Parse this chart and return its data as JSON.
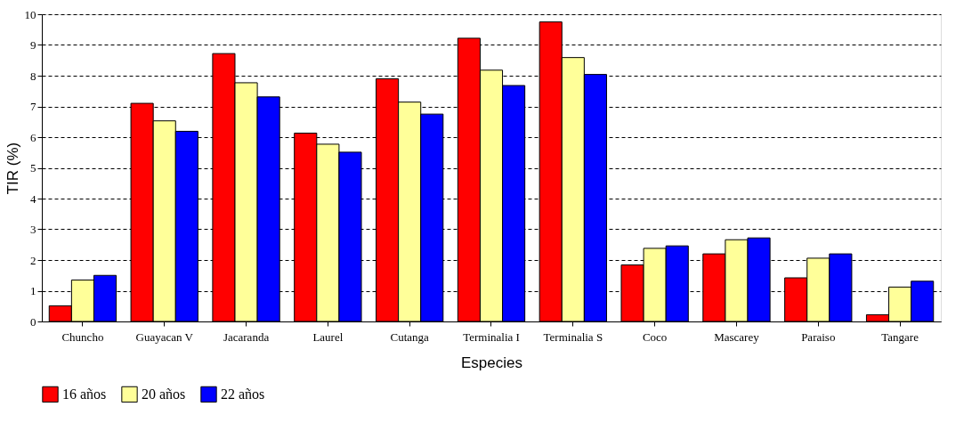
{
  "chart_data": {
    "type": "bar",
    "xlabel": "Especies",
    "ylabel": "TIR (%)",
    "categories": [
      "Chuncho",
      "Guayacan V",
      "Jacaranda",
      "Laurel",
      "Cutanga",
      "Terminalia I",
      "Terminalia S",
      "Coco",
      "Mascarey",
      "Paraiso",
      "Tangare"
    ],
    "series": [
      {
        "name": "16 años",
        "color": "#ff0000",
        "values": [
          0.51,
          7.1,
          8.72,
          6.13,
          7.9,
          9.22,
          9.75,
          1.84,
          2.2,
          1.42,
          0.22
        ]
      },
      {
        "name": "20 años",
        "color": "#ffff99",
        "values": [
          1.35,
          6.53,
          7.77,
          5.77,
          7.14,
          8.18,
          8.59,
          2.38,
          2.66,
          2.06,
          1.12
        ]
      },
      {
        "name": "22  años",
        "color": "#0000ff",
        "values": [
          1.5,
          6.19,
          7.31,
          5.51,
          6.75,
          7.68,
          8.04,
          2.46,
          2.72,
          2.2,
          1.31
        ]
      }
    ],
    "ylim": [
      0,
      10
    ],
    "yticks": [
      0,
      1,
      2,
      3,
      4,
      5,
      6,
      7,
      8,
      9,
      10
    ],
    "grid": "y",
    "legend": "bottom"
  }
}
